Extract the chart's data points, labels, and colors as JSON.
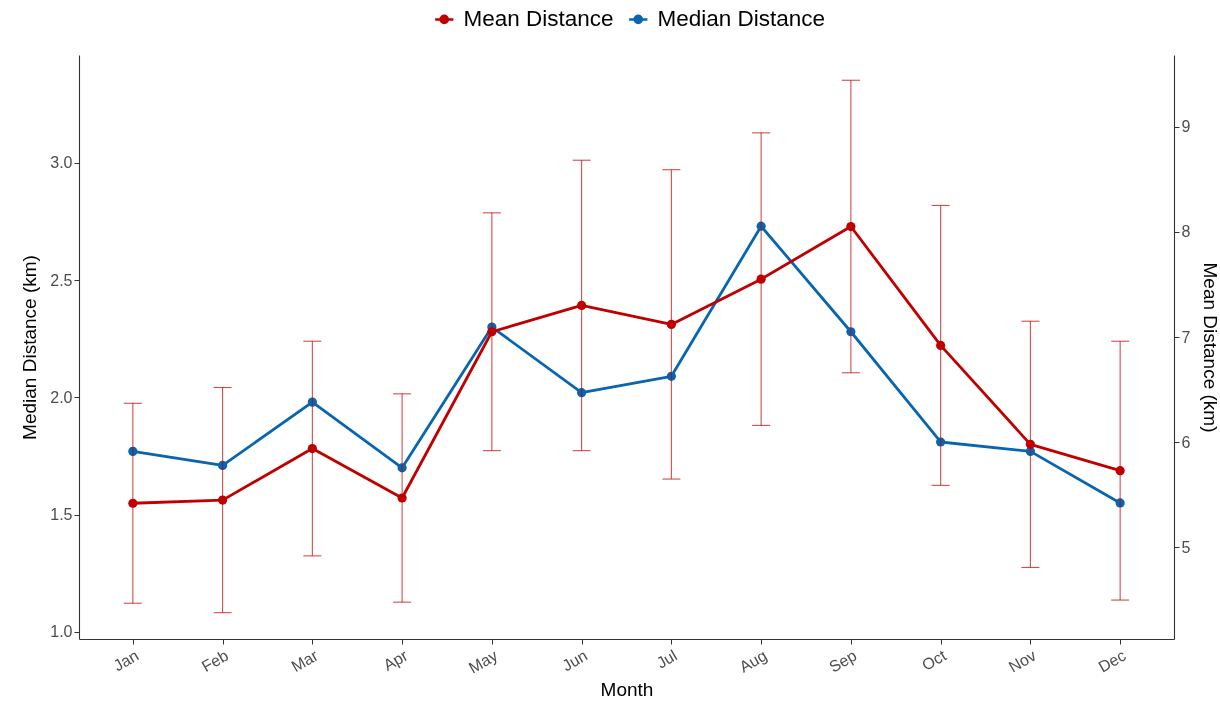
{
  "chart_data": {
    "type": "line",
    "xlabel": "Month",
    "ylabel": "Median Distance (km)",
    "y2label": "Mean Distance (km)",
    "categories": [
      "Jan",
      "Feb",
      "Mar",
      "Apr",
      "May",
      "Jun",
      "Jul",
      "Aug",
      "Sep",
      "Oct",
      "Nov",
      "Dec"
    ],
    "series": [
      {
        "name": "Mean Distance",
        "color": "#c00000",
        "axis": "y2",
        "values": [
          5.42,
          5.45,
          5.94,
          5.47,
          7.05,
          7.3,
          7.12,
          7.55,
          8.05,
          6.92,
          5.98,
          5.73
        ],
        "errors": [
          0.95,
          1.07,
          1.02,
          0.99,
          1.13,
          1.38,
          1.47,
          1.39,
          1.39,
          1.33,
          1.17,
          1.23
        ]
      },
      {
        "name": "Median Distance",
        "color": "#0865b0",
        "values": [
          1.77,
          1.71,
          1.98,
          1.7,
          2.3,
          2.02,
          2.09,
          2.73,
          2.28,
          1.81,
          1.77,
          1.55
        ]
      }
    ],
    "ylim": [
      0.97,
      3.46
    ],
    "yticks": [
      {
        "value": 1,
        "label": "1.0"
      },
      1.5,
      {
        "value": 2,
        "label": "2.0"
      },
      2.5,
      {
        "value": 3,
        "label": "3.0"
      }
    ],
    "y2lim": [
      4.13,
      9.68
    ],
    "y2ticks": [
      5,
      6,
      7,
      8,
      9
    ],
    "grid": false,
    "legend": "top",
    "marker": "circle",
    "line_style": "solid"
  }
}
